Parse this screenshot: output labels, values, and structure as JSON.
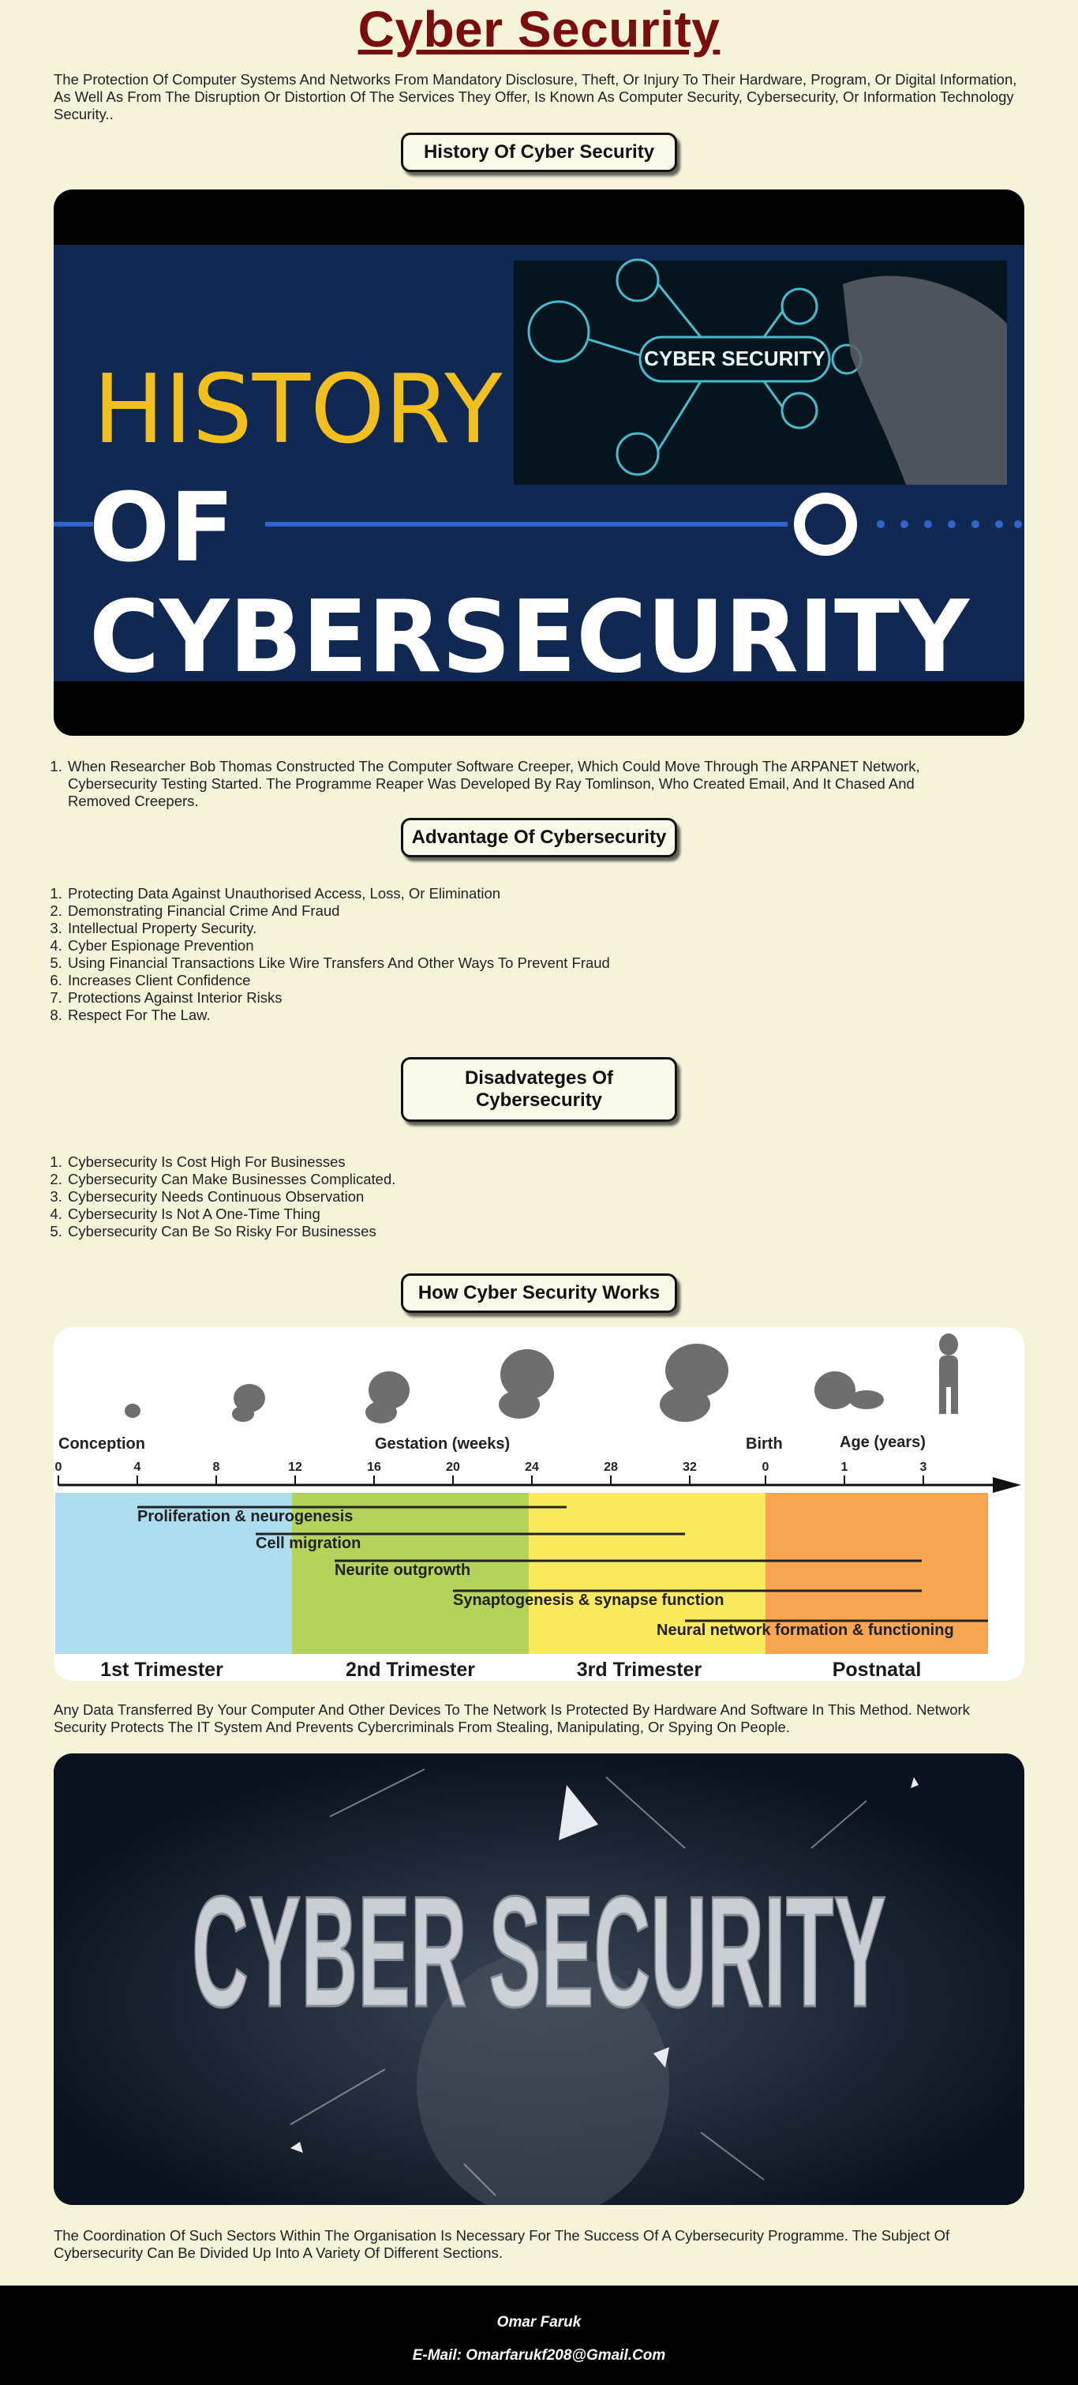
{
  "page": {
    "title": "Cyber Security",
    "intro": "The Protection Of Computer Systems And Networks From Mandatory Disclosure, Theft, Or Injury To Their Hardware, Program, Or Digital Information, As Well As From The Disruption Or Distortion Of The Services They Offer, Is Known As Computer Security, Cybersecurity, Or Information Technology Security.."
  },
  "history": {
    "button": "History Of Cyber Security",
    "banner": {
      "word1": "HISTORY",
      "word2": "OF",
      "word3": "CYBERSECURITY",
      "inset_label": "CYBER SECURITY"
    },
    "items": [
      "When Researcher Bob Thomas Constructed The Computer Software Creeper, Which Could Move Through The ARPANET Network, Cybersecurity Testing Started. The Programme Reaper Was Developed By Ray Tomlinson, Who Created Email, And It Chased And Removed Creepers."
    ]
  },
  "advantages": {
    "button": "Advantage Of Cybersecurity",
    "items": [
      "Protecting Data Against Unauthorised Access, Loss, Or Elimination",
      "Demonstrating Financial Crime And Fraud",
      "Intellectual Property Security.",
      "Cyber Espionage Prevention",
      "Using Financial Transactions Like Wire Transfers And Other Ways To Prevent Fraud",
      "Increases Client Confidence",
      "Protections Against Interior Risks",
      "Respect For The Law."
    ]
  },
  "disadvantages": {
    "button": "Disadvateges Of Cybersecurity",
    "items": [
      "Cybersecurity Is Cost High For Businesses",
      "Cybersecurity Can Make Businesses Complicated.",
      "Cybersecurity Needs Continuous Observation",
      "Cybersecurity Is Not A One-Time Thing",
      "Cybersecurity Can Be So Risky For Businesses"
    ]
  },
  "works": {
    "button": "How Cyber Security Works",
    "diagram": {
      "conception": "Conception",
      "gestation": "Gestation (weeks)",
      "birth": "Birth",
      "age": "Age (years)",
      "week_ticks": [
        "0",
        "4",
        "8",
        "12",
        "16",
        "20",
        "24",
        "28",
        "32"
      ],
      "age_ticks": [
        "0",
        "1",
        "3"
      ],
      "bars": [
        "Proliferation & neurogenesis",
        "Cell migration",
        "Neurite outgrowth",
        "Synaptogenesis & synapse function",
        "Neural network formation & functioning"
      ],
      "periods": [
        "1st Trimester",
        "2nd Trimester",
        "3rd Trimester",
        "Postnatal"
      ],
      "colors": {
        "first": "#aedcef",
        "second": "#b4d35a",
        "third": "#f8ea5c",
        "postnatal": "#f8a552"
      }
    },
    "text": "Any Data Transferred By Your Computer And Other Devices To The Network Is Protected By Hardware And Software In This Method. Network Security Protects The IT System And Prevents Cybercriminals From Stealing, Manipulating, Or Spying On People."
  },
  "art": {
    "label": "CYBER SECURITY"
  },
  "closing": "The Coordination Of Such Sectors Within The Organisation Is Necessary For The Success Of A Cybersecurity Programme. The Subject Of Cybersecurity Can Be Divided Up Into A Variety Of Different Sections.",
  "footer": {
    "name": "Omar Faruk",
    "email": "E-Mail: Omarfarukf208@Gmail.Com"
  }
}
